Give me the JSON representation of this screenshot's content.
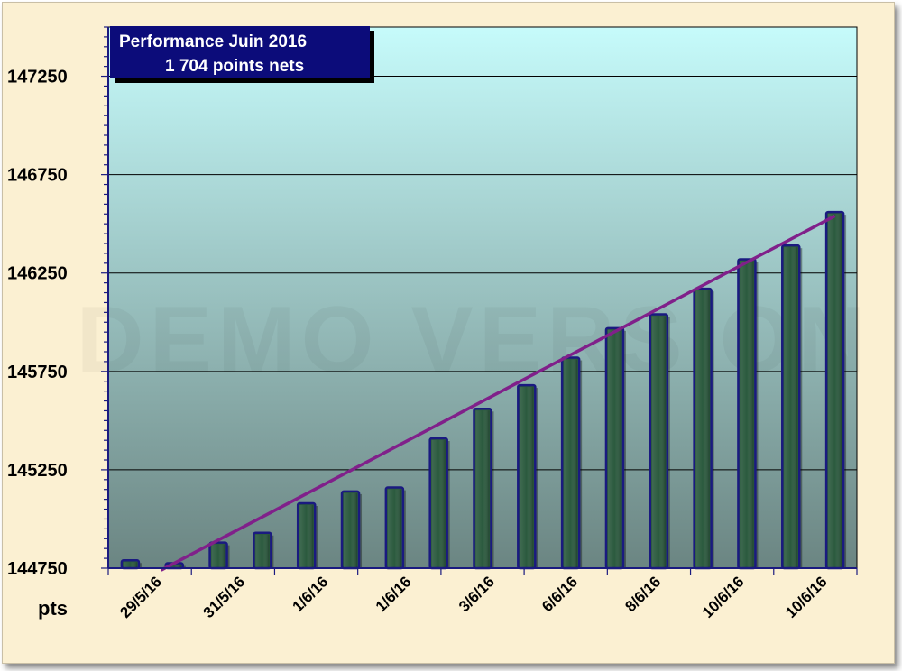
{
  "chart_data": {
    "type": "bar",
    "title_lines": [
      "Performance  Juin  2016",
      "1 704 points nets"
    ],
    "watermark": "DEMO VERSION",
    "ylabel": "pts",
    "ylim": [
      144750,
      147500
    ],
    "yticks": [
      144750,
      145250,
      145750,
      146250,
      146750,
      147250
    ],
    "ytick_labels": [
      "144750",
      "145250",
      "145750",
      "146250",
      "146750",
      "147250"
    ],
    "xtick_labels": [
      "29/5/16",
      "31/5/16",
      "1/6/16",
      "1/6/16",
      "3/6/16",
      "6/6/16",
      "8/6/16",
      "10/6/16",
      "10/6/16"
    ],
    "values": [
      144790,
      144775,
      144880,
      144930,
      145080,
      145140,
      145160,
      145410,
      145560,
      145680,
      145820,
      145970,
      146040,
      146170,
      146320,
      146390,
      146560
    ],
    "trendline": {
      "start": 144740,
      "end": 146540
    },
    "grid": true,
    "colors": {
      "bar_fill": "#2b5a3e",
      "bar_edge": "#1a1a80",
      "trendline": "#80208a",
      "plot_top": "#c6fbfb",
      "plot_bottom": "#6b8582",
      "title_box": "#0c0c7a",
      "background": "#fbf0d2"
    }
  }
}
